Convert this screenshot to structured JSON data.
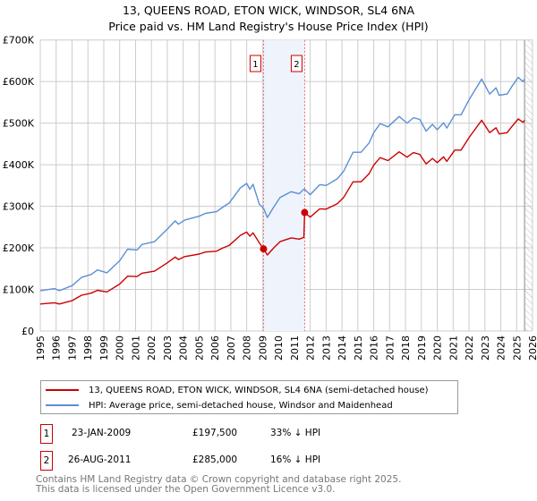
{
  "title": "13, QUEENS ROAD, ETON WICK, WINDSOR, SL4 6NA",
  "subtitle": "Price paid vs. HM Land Registry's House Price Index (HPI)",
  "chart_data": {
    "type": "line",
    "title": "13, QUEENS ROAD, ETON WICK, WINDSOR, SL4 6NA",
    "subtitle": "Price paid vs. HM Land Registry's House Price Index (HPI)",
    "xlim": [
      1995,
      2026
    ],
    "ylim": [
      0,
      700000
    ],
    "x_ticks": [
      "1995",
      "1996",
      "1997",
      "1998",
      "1999",
      "2000",
      "2001",
      "2002",
      "2003",
      "2004",
      "2005",
      "2006",
      "2007",
      "2008",
      "2009",
      "2010",
      "2011",
      "2012",
      "2013",
      "2014",
      "2015",
      "2016",
      "2017",
      "2018",
      "2019",
      "2020",
      "2021",
      "2022",
      "2023",
      "2024",
      "2025",
      "2026"
    ],
    "y_ticks": [
      {
        "v": 0,
        "label": "£0"
      },
      {
        "v": 100000,
        "label": "£100K"
      },
      {
        "v": 200000,
        "label": "£200K"
      },
      {
        "v": 300000,
        "label": "£300K"
      },
      {
        "v": 400000,
        "label": "£400K"
      },
      {
        "v": 500000,
        "label": "£500K"
      },
      {
        "v": 600000,
        "label": "£600K"
      },
      {
        "v": 700000,
        "label": "£700K"
      }
    ],
    "grid": true,
    "shaded_span": [
      2009.06,
      2011.65
    ],
    "forecast_hatch_from": 2025.5,
    "colors": {
      "price": "#cc0000",
      "hpi": "#5b8fd6"
    },
    "series": [
      {
        "name": "13, QUEENS ROAD, ETON WICK, WINDSOR, SL4 6NA (semi-detached house)",
        "key": "price",
        "x": [
          1995,
          1995.9,
          1996.2,
          1997,
          1997.6,
          1998.2,
          1998.6,
          1999.2,
          2000,
          2000.5,
          2001.1,
          2001.4,
          2002.2,
          2003,
          2003.5,
          2003.7,
          2004.1,
          2005,
          2005.4,
          2006.1,
          2006.5,
          2006.9,
          2007.6,
          2008,
          2008.2,
          2008.4,
          2008.8,
          2009.06,
          2009.3,
          2009.7,
          2010.1,
          2010.8,
          2011.3,
          2011.6,
          2011.65,
          2012,
          2012.6,
          2013,
          2013.7,
          2014.1,
          2014.7,
          2015.2,
          2015.7,
          2016,
          2016.4,
          2016.9,
          2017.6,
          2018.1,
          2018.5,
          2018.9,
          2019.3,
          2019.7,
          2020,
          2020.4,
          2020.6,
          2021.1,
          2021.5,
          2022,
          2022.4,
          2022.8,
          2023.3,
          2023.7,
          2023.9,
          2024.4,
          2024.7,
          2025.1,
          2025.4,
          2025.5
        ],
        "values": [
          65,
          68,
          65,
          73,
          86,
          91,
          98,
          94,
          113,
          132,
          131,
          139,
          144,
          164,
          178,
          172,
          179,
          185,
          190,
          192,
          200,
          206,
          230,
          238,
          228,
          236,
          212,
          197.5,
          183,
          200,
          215,
          224,
          221,
          225,
          285,
          274,
          294,
          293,
          306,
          321,
          359,
          359,
          378,
          399,
          417,
          410,
          431,
          418,
          429,
          425,
          402,
          415,
          405,
          419,
          408,
          435,
          435,
          465,
          486,
          507,
          477,
          489,
          474,
          477,
          492,
          510,
          502,
          507
        ]
      },
      {
        "name": "HPI: Average price, semi-detached house, Windsor and Maidenhead",
        "key": "hpi",
        "x": [
          1995,
          1995.9,
          1996.2,
          1997,
          1997.6,
          1998.2,
          1998.6,
          1999.2,
          2000,
          2000.5,
          2001.1,
          2001.4,
          2002.2,
          2003,
          2003.5,
          2003.7,
          2004.1,
          2005,
          2005.4,
          2006.1,
          2006.5,
          2006.9,
          2007.6,
          2008,
          2008.2,
          2008.4,
          2008.8,
          2009.06,
          2009.3,
          2009.7,
          2010.1,
          2010.8,
          2011.3,
          2011.6,
          2011.65,
          2012,
          2012.6,
          2013,
          2013.7,
          2014.1,
          2014.7,
          2015.2,
          2015.7,
          2016,
          2016.4,
          2016.9,
          2017.6,
          2018.1,
          2018.5,
          2018.9,
          2019.3,
          2019.7,
          2020,
          2020.4,
          2020.6,
          2021.1,
          2021.5,
          2022,
          2022.4,
          2022.8,
          2023.3,
          2023.7,
          2023.9,
          2024.4,
          2024.7,
          2025.1,
          2025.4,
          2025.5
        ],
        "values": [
          97,
          102,
          97,
          109,
          129,
          136,
          147,
          140,
          169,
          197,
          195,
          208,
          215,
          245,
          265,
          257,
          267,
          276,
          283,
          287,
          298,
          308,
          344,
          355,
          341,
          353,
          305,
          295,
          273,
          298,
          321,
          335,
          330,
          341,
          341,
          328,
          352,
          350,
          366,
          384,
          430,
          430,
          452,
          477,
          499,
          491,
          516,
          500,
          513,
          509,
          481,
          497,
          484,
          501,
          488,
          520,
          520,
          556,
          581,
          606,
          570,
          585,
          567,
          570,
          588,
          610,
          600,
          606
        ]
      }
    ],
    "value_unit": "thousand GBP",
    "sales": [
      {
        "n": "1",
        "x": 2009.06,
        "value": 197500
      },
      {
        "n": "2",
        "x": 2011.65,
        "value": 285000
      }
    ]
  },
  "legend": {
    "price": "13, QUEENS ROAD, ETON WICK, WINDSOR, SL4 6NA (semi-detached house)",
    "hpi": "HPI: Average price, semi-detached house, Windsor and Maidenhead"
  },
  "transactions": [
    {
      "n": "1",
      "date": "23-JAN-2009",
      "price": "£197,500",
      "hpi": "33% ↓ HPI"
    },
    {
      "n": "2",
      "date": "26-AUG-2011",
      "price": "£285,000",
      "hpi": "16% ↓ HPI"
    }
  ],
  "footer": [
    "Contains HM Land Registry data © Crown copyright and database right 2025.",
    "This data is licensed under the Open Government Licence v3.0."
  ]
}
